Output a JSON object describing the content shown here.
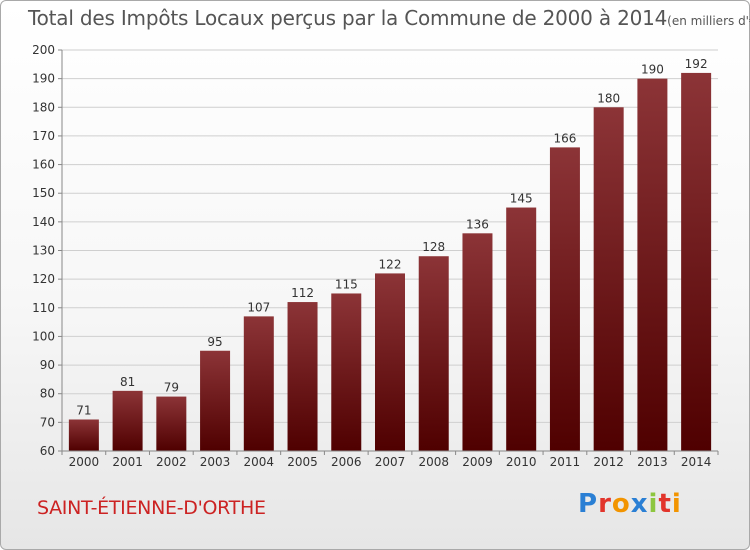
{
  "header": {
    "title": "Total des Impôts Locaux perçus par la Commune de 2000 à 2014",
    "unit": "(en milliers d'€)"
  },
  "commune": "SAINT-ÉTIENNE-D'ORTHE",
  "brand": {
    "text": "Proxiti",
    "letter_colors": [
      "#2a7fd4",
      "#e2342b",
      "#f29400",
      "#2a7fd4",
      "#8dc63f",
      "#e2342b",
      "#f29400"
    ]
  },
  "colors": {
    "bar_top": "#8c3437",
    "bar_bottom": "#4f0000",
    "axis": "#888888",
    "grid": "#cfcfcf",
    "text": "#333333",
    "title": "#555555",
    "commune": "#cc2222"
  },
  "chart_data": {
    "type": "bar",
    "title": "Total des Impôts Locaux perçus par la Commune de 2000 à 2014",
    "xlabel": "",
    "ylabel": "en milliers d'€",
    "categories": [
      "2000",
      "2001",
      "2002",
      "2003",
      "2004",
      "2005",
      "2006",
      "2007",
      "2008",
      "2009",
      "2010",
      "2011",
      "2012",
      "2013",
      "2014"
    ],
    "values": [
      71,
      81,
      79,
      95,
      107,
      112,
      115,
      122,
      128,
      136,
      145,
      166,
      180,
      190,
      192
    ],
    "ylim": [
      60,
      200
    ],
    "yticks": [
      60,
      70,
      80,
      90,
      100,
      110,
      120,
      130,
      140,
      150,
      160,
      170,
      180,
      190,
      200
    ],
    "grid": true
  }
}
